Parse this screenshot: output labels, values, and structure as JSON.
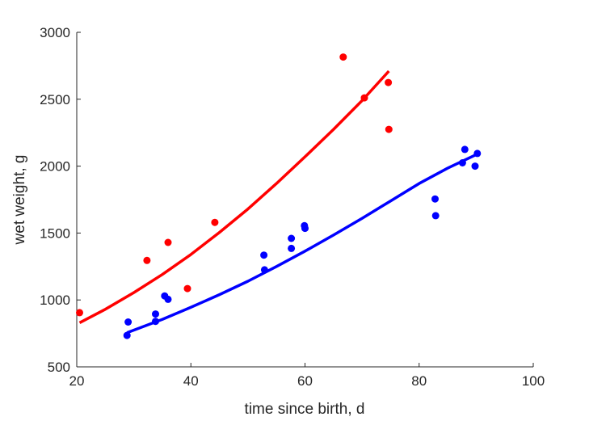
{
  "chart_data": {
    "type": "scatter",
    "title": "",
    "xlabel": "time since birth, d",
    "ylabel": "wet weight, g",
    "xlim": [
      20,
      100
    ],
    "ylim": [
      500,
      3000
    ],
    "xticks": [
      20,
      40,
      60,
      80,
      100
    ],
    "yticks": [
      500,
      1000,
      1500,
      2000,
      2500,
      3000
    ],
    "grid": false,
    "legend": "none",
    "series": [
      {
        "color": "#ff0000",
        "points": [
          [
            20.5,
            905
          ],
          [
            32.3,
            1295
          ],
          [
            36.0,
            1430
          ],
          [
            39.4,
            1085
          ],
          [
            44.2,
            1580
          ],
          [
            66.7,
            2815
          ],
          [
            70.4,
            2510
          ],
          [
            74.6,
            2625
          ],
          [
            74.7,
            2275
          ]
        ],
        "fit": [
          [
            20.5,
            830
          ],
          [
            25,
            930
          ],
          [
            30,
            1055
          ],
          [
            35,
            1190
          ],
          [
            40,
            1340
          ],
          [
            45,
            1505
          ],
          [
            50,
            1680
          ],
          [
            55,
            1870
          ],
          [
            60,
            2070
          ],
          [
            65,
            2275
          ],
          [
            70,
            2490
          ],
          [
            74.7,
            2710
          ]
        ]
      },
      {
        "color": "#0000ff",
        "points": [
          [
            28.8,
            735
          ],
          [
            29.0,
            835
          ],
          [
            33.8,
            840
          ],
          [
            33.8,
            895
          ],
          [
            35.4,
            1030
          ],
          [
            36.0,
            1005
          ],
          [
            52.8,
            1335
          ],
          [
            52.9,
            1225
          ],
          [
            57.6,
            1460
          ],
          [
            57.6,
            1385
          ],
          [
            59.9,
            1555
          ],
          [
            60.0,
            1535
          ],
          [
            82.8,
            1755
          ],
          [
            82.9,
            1630
          ],
          [
            87.6,
            2025
          ],
          [
            88.0,
            2125
          ],
          [
            89.8,
            2000
          ],
          [
            90.2,
            2095
          ]
        ],
        "fit": [
          [
            28.8,
            755
          ],
          [
            35,
            855
          ],
          [
            40,
            945
          ],
          [
            45,
            1040
          ],
          [
            50,
            1140
          ],
          [
            55,
            1250
          ],
          [
            60,
            1365
          ],
          [
            65,
            1485
          ],
          [
            70,
            1610
          ],
          [
            75,
            1740
          ],
          [
            80,
            1870
          ],
          [
            85,
            1985
          ],
          [
            90.2,
            2090
          ]
        ]
      }
    ]
  }
}
